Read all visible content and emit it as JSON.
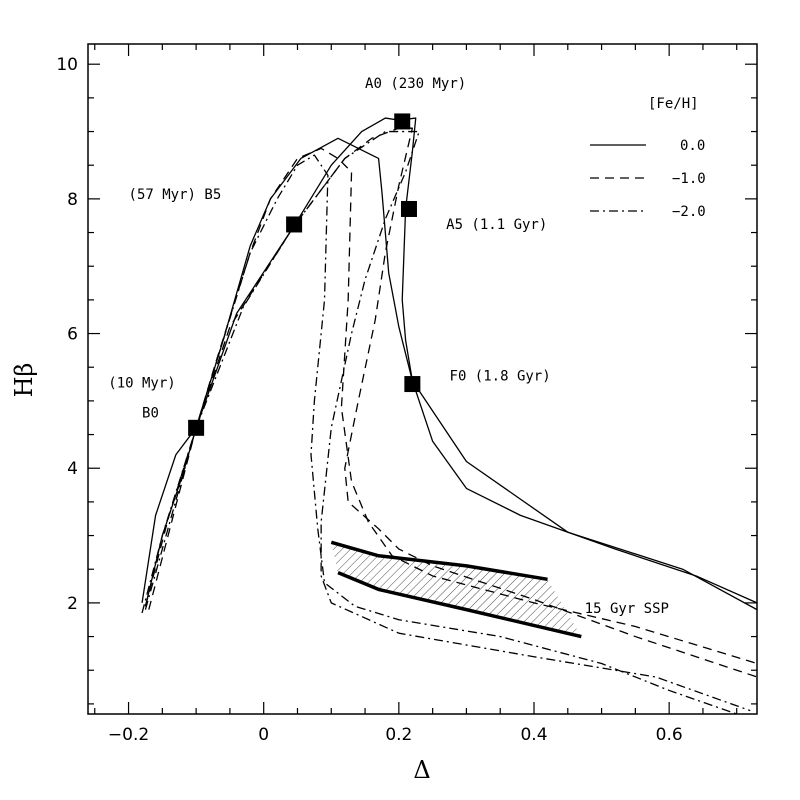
{
  "chart_data": {
    "type": "line",
    "xlabel": "Δ",
    "ylabel": "Hβ",
    "xlim": [
      -0.26,
      0.73
    ],
    "ylim": [
      0.35,
      10.3
    ],
    "xticks": [
      -0.2,
      0,
      0.2,
      0.4,
      0.6
    ],
    "xtick_labels": [
      "−0.2",
      "0",
      "0.2",
      "0.4",
      "0.6"
    ],
    "yticks": [
      2,
      4,
      6,
      8,
      10
    ],
    "ytick_labels": [
      "2",
      "4",
      "6",
      "8",
      "10"
    ],
    "grid": false,
    "legend": {
      "title": "[Fe/H]",
      "placement": "top-right",
      "entries": [
        {
          "label": "0.0",
          "style": "solid"
        },
        {
          "label": "−1.0",
          "style": "dashed"
        },
        {
          "label": "−2.0",
          "style": "dashdot"
        }
      ]
    },
    "series": [
      {
        "style": "solid",
        "points": [
          [
            -0.18,
            2.0
          ],
          [
            -0.16,
            3.3
          ],
          [
            -0.13,
            4.2
          ],
          [
            -0.1,
            4.6
          ],
          [
            -0.06,
            5.9
          ],
          [
            -0.02,
            7.3
          ],
          [
            0.01,
            8.0
          ],
          [
            0.055,
            8.6
          ],
          [
            0.11,
            8.9
          ],
          [
            0.17,
            8.6
          ],
          [
            0.175,
            8.1
          ],
          [
            0.185,
            6.9
          ],
          [
            0.2,
            6.1
          ],
          [
            0.22,
            5.3
          ],
          [
            0.25,
            4.4
          ],
          [
            0.3,
            3.7
          ],
          [
            0.38,
            3.3
          ],
          [
            0.52,
            2.8
          ],
          [
            0.64,
            2.4
          ],
          [
            0.73,
            2.0
          ]
        ]
      },
      {
        "style": "solid",
        "points": [
          [
            -0.175,
            1.95
          ],
          [
            -0.15,
            3.0
          ],
          [
            -0.12,
            3.9
          ],
          [
            -0.1,
            4.6
          ],
          [
            -0.04,
            6.3
          ],
          [
            0.045,
            7.6
          ],
          [
            0.1,
            8.5
          ],
          [
            0.145,
            9.0
          ],
          [
            0.18,
            9.2
          ],
          [
            0.2,
            9.17
          ],
          [
            0.225,
            9.2
          ],
          [
            0.22,
            8.7
          ],
          [
            0.21,
            7.85
          ],
          [
            0.205,
            6.5
          ],
          [
            0.21,
            5.9
          ],
          [
            0.22,
            5.3
          ],
          [
            0.24,
            5.0
          ],
          [
            0.3,
            4.1
          ],
          [
            0.45,
            3.05
          ],
          [
            0.62,
            2.5
          ],
          [
            0.73,
            1.9
          ]
        ]
      },
      {
        "style": "dashed",
        "points": [
          [
            -0.175,
            1.95
          ],
          [
            -0.14,
            3.3
          ],
          [
            -0.1,
            4.6
          ],
          [
            -0.07,
            5.6
          ],
          [
            -0.02,
            7.2
          ],
          [
            0.01,
            8.0
          ],
          [
            0.05,
            8.6
          ],
          [
            0.085,
            8.75
          ],
          [
            0.11,
            8.6
          ],
          [
            0.13,
            8.4
          ],
          [
            0.125,
            6.5
          ],
          [
            0.115,
            4.9
          ],
          [
            0.13,
            3.8
          ],
          [
            0.155,
            3.2
          ],
          [
            0.19,
            2.7
          ],
          [
            0.25,
            2.4
          ],
          [
            0.4,
            2.0
          ],
          [
            0.55,
            1.65
          ],
          [
            0.73,
            1.1
          ]
        ]
      },
      {
        "style": "dashed",
        "points": [
          [
            -0.17,
            1.9
          ],
          [
            -0.1,
            4.6
          ],
          [
            -0.05,
            6.1
          ],
          [
            0.045,
            7.6
          ],
          [
            0.12,
            8.6
          ],
          [
            0.16,
            8.9
          ],
          [
            0.2,
            9.05
          ],
          [
            0.22,
            9.05
          ],
          [
            0.2,
            8.2
          ],
          [
            0.18,
            7.2
          ],
          [
            0.165,
            6.2
          ],
          [
            0.14,
            5.0
          ],
          [
            0.12,
            4.0
          ],
          [
            0.125,
            3.5
          ],
          [
            0.17,
            3.1
          ],
          [
            0.2,
            2.8
          ],
          [
            0.25,
            2.55
          ],
          [
            0.4,
            2.05
          ],
          [
            0.55,
            1.5
          ],
          [
            0.73,
            0.9
          ]
        ]
      },
      {
        "style": "dashdot",
        "points": [
          [
            -0.18,
            1.85
          ],
          [
            -0.15,
            3.0
          ],
          [
            -0.1,
            4.6
          ],
          [
            -0.06,
            5.9
          ],
          [
            -0.02,
            7.2
          ],
          [
            0.02,
            8.0
          ],
          [
            0.05,
            8.5
          ],
          [
            0.075,
            8.65
          ],
          [
            0.095,
            8.35
          ],
          [
            0.09,
            6.5
          ],
          [
            0.075,
            5.0
          ],
          [
            0.07,
            4.2
          ],
          [
            0.08,
            3.1
          ],
          [
            0.09,
            2.3
          ],
          [
            0.135,
            1.95
          ],
          [
            0.2,
            1.75
          ],
          [
            0.35,
            1.5
          ],
          [
            0.5,
            1.1
          ],
          [
            0.6,
            0.7
          ],
          [
            0.7,
            0.35
          ]
        ]
      },
      {
        "style": "dashdot",
        "points": [
          [
            -0.175,
            1.9
          ],
          [
            -0.1,
            4.6
          ],
          [
            -0.03,
            6.4
          ],
          [
            0.045,
            7.6
          ],
          [
            0.12,
            8.6
          ],
          [
            0.18,
            9.0
          ],
          [
            0.23,
            9.0
          ],
          [
            0.21,
            8.4
          ],
          [
            0.18,
            7.7
          ],
          [
            0.15,
            6.8
          ],
          [
            0.13,
            6.0
          ],
          [
            0.1,
            4.6
          ],
          [
            0.085,
            3.2
          ],
          [
            0.085,
            2.4
          ],
          [
            0.1,
            2.0
          ],
          [
            0.2,
            1.55
          ],
          [
            0.4,
            1.2
          ],
          [
            0.58,
            0.9
          ],
          [
            0.72,
            0.4
          ]
        ]
      }
    ],
    "ssp_lines": [
      {
        "points": [
          [
            0.1,
            2.9
          ],
          [
            0.17,
            2.7
          ],
          [
            0.3,
            2.55
          ],
          [
            0.42,
            2.35
          ]
        ]
      },
      {
        "points": [
          [
            0.11,
            2.45
          ],
          [
            0.17,
            2.2
          ],
          [
            0.3,
            1.9
          ],
          [
            0.47,
            1.5
          ]
        ]
      }
    ],
    "ssp_region": [
      [
        0.1,
        2.9
      ],
      [
        0.17,
        2.7
      ],
      [
        0.3,
        2.55
      ],
      [
        0.42,
        2.35
      ],
      [
        0.47,
        1.5
      ],
      [
        0.3,
        1.9
      ],
      [
        0.17,
        2.2
      ],
      [
        0.11,
        2.45
      ]
    ],
    "markers": [
      {
        "x": -0.1,
        "y": 4.6
      },
      {
        "x": 0.045,
        "y": 7.62
      },
      {
        "x": 0.205,
        "y": 9.15
      },
      {
        "x": 0.215,
        "y": 7.85
      },
      {
        "x": 0.22,
        "y": 5.25
      }
    ],
    "annotations": [
      {
        "text": "A0 (230 Myr)",
        "x": 0.15,
        "y": 9.65
      },
      {
        "text": "(57 Myr) B5",
        "x": -0.2,
        "y": 8.0
      },
      {
        "text": "A5 (1.1 Gyr)",
        "x": 0.27,
        "y": 7.55
      },
      {
        "text": "(10 Myr)",
        "x": -0.23,
        "y": 5.2
      },
      {
        "text": "B0",
        "x": -0.18,
        "y": 4.75
      },
      {
        "text": "F0 (1.8 Gyr)",
        "x": 0.275,
        "y": 5.3
      },
      {
        "text": "15 Gyr SSP",
        "x": 0.475,
        "y": 1.85
      }
    ]
  }
}
